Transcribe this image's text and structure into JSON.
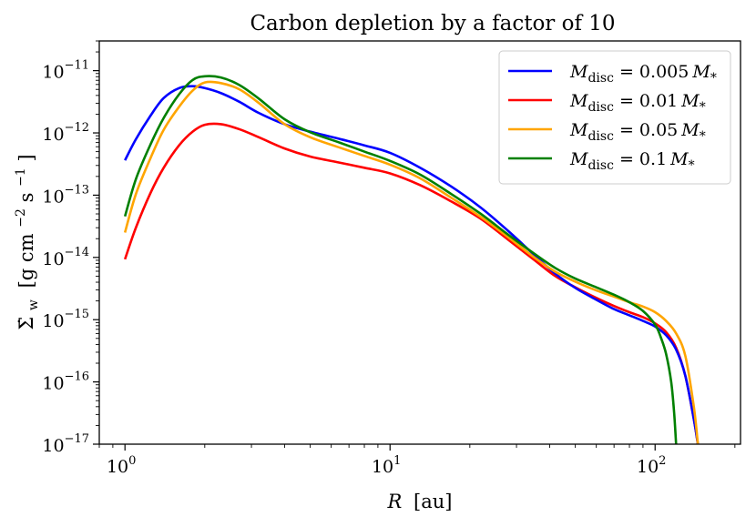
{
  "chart_data": {
    "type": "line",
    "title": "Carbon depletion by a factor of 10",
    "xlabel": {
      "var": "R",
      "unit": "[au]"
    },
    "ylabel": {
      "sym": "Σ̇",
      "sub": "w",
      "pre": "[g cm",
      "mid": " s",
      "post": "]"
    },
    "x_scale": "log",
    "y_scale": "log",
    "xlim": [
      0.8,
      210
    ],
    "ylim": [
      1e-17,
      3e-11
    ],
    "x_ticks": [
      {
        "base": "10",
        "exp": "0",
        "value": 1
      },
      {
        "base": "10",
        "exp": "1",
        "value": 10
      },
      {
        "base": "10",
        "exp": "2",
        "value": 100
      }
    ],
    "y_ticks": [
      {
        "base": "10",
        "exp": "−17",
        "value": 1e-17
      },
      {
        "base": "10",
        "exp": "−16",
        "value": 1e-16
      },
      {
        "base": "10",
        "exp": "−15",
        "value": 1e-15
      },
      {
        "base": "10",
        "exp": "−14",
        "value": 1e-14
      },
      {
        "base": "10",
        "exp": "−13",
        "value": 1e-13
      },
      {
        "base": "10",
        "exp": "−12",
        "value": 1e-12
      },
      {
        "base": "10",
        "exp": "−11",
        "value": 1e-11
      }
    ],
    "legend_position": "top-right",
    "series": [
      {
        "name": "M_disc = 0.005 M_*",
        "label": {
          "sym": "M",
          "sub": "disc",
          "rhs": " = 0.005",
          "sym2": "M",
          "sub2": "*"
        },
        "color": "#0000ff",
        "x": [
          1.0,
          1.1,
          1.25,
          1.4,
          1.6,
          1.8,
          2.0,
          2.3,
          2.7,
          3.2,
          4.0,
          5.0,
          6.5,
          8.0,
          10,
          13,
          17,
          22,
          28,
          35,
          42,
          50,
          60,
          70,
          80,
          90,
          100,
          110,
          120,
          130,
          140,
          145
        ],
        "y": [
          -12.44,
          -12.1,
          -11.72,
          -11.44,
          -11.28,
          -11.25,
          -11.28,
          -11.36,
          -11.5,
          -11.68,
          -11.86,
          -11.98,
          -12.1,
          -12.2,
          -12.32,
          -12.56,
          -12.86,
          -13.2,
          -13.58,
          -13.96,
          -14.26,
          -14.49,
          -14.68,
          -14.83,
          -14.93,
          -15.02,
          -15.11,
          -15.25,
          -15.48,
          -15.9,
          -16.6,
          -17.0
        ]
      },
      {
        "name": "M_disc = 0.01 M_*",
        "label": {
          "sym": "M",
          "sub": "disc",
          "rhs": " = 0.01",
          "sym2": "M",
          "sub2": "*"
        },
        "color": "#ff0000",
        "x": [
          1.0,
          1.1,
          1.25,
          1.4,
          1.6,
          1.8,
          2.0,
          2.3,
          2.7,
          3.2,
          4.0,
          5.0,
          6.5,
          8.0,
          10,
          13,
          17,
          22,
          28,
          35,
          42,
          50,
          60,
          70,
          80,
          90,
          100,
          110,
          120,
          130,
          140,
          145
        ],
        "y": [
          -14.03,
          -13.52,
          -12.96,
          -12.56,
          -12.2,
          -11.98,
          -11.87,
          -11.86,
          -11.94,
          -12.07,
          -12.25,
          -12.38,
          -12.48,
          -12.56,
          -12.65,
          -12.84,
          -13.1,
          -13.38,
          -13.72,
          -14.04,
          -14.3,
          -14.48,
          -14.65,
          -14.78,
          -14.88,
          -14.96,
          -15.06,
          -15.2,
          -15.45,
          -15.9,
          -16.6,
          -17.0
        ]
      },
      {
        "name": "M_disc = 0.05 M_*",
        "label": {
          "sym": "M",
          "sub": "disc",
          "rhs": " = 0.05",
          "sym2": "M",
          "sub2": "*"
        },
        "color": "#ffa500",
        "x": [
          1.0,
          1.1,
          1.25,
          1.4,
          1.6,
          1.8,
          2.0,
          2.3,
          2.7,
          3.2,
          4.0,
          5.0,
          6.5,
          8.0,
          10,
          13,
          17,
          22,
          28,
          35,
          42,
          50,
          60,
          70,
          80,
          90,
          100,
          110,
          120,
          130,
          140,
          145
        ],
        "y": [
          -13.6,
          -12.98,
          -12.4,
          -11.95,
          -11.58,
          -11.32,
          -11.19,
          -11.2,
          -11.3,
          -11.52,
          -11.86,
          -12.07,
          -12.24,
          -12.37,
          -12.51,
          -12.73,
          -13.04,
          -13.35,
          -13.68,
          -14.0,
          -14.23,
          -14.39,
          -14.53,
          -14.63,
          -14.72,
          -14.79,
          -14.88,
          -15.02,
          -15.22,
          -15.58,
          -16.4,
          -17.0
        ]
      },
      {
        "name": "M_disc = 0.1 M_*",
        "label": {
          "sym": "M",
          "sub": "disc",
          "rhs": " = 0.1",
          "sym2": "M",
          "sub2": "*"
        },
        "color": "#008000",
        "x": [
          1.0,
          1.1,
          1.25,
          1.4,
          1.6,
          1.8,
          2.0,
          2.3,
          2.7,
          3.2,
          4.0,
          5.0,
          6.5,
          8.0,
          10,
          13,
          17,
          22,
          28,
          35,
          42,
          50,
          60,
          70,
          80,
          90,
          100,
          105,
          110,
          115,
          118,
          120
        ],
        "y": [
          -13.34,
          -12.74,
          -12.18,
          -11.76,
          -11.38,
          -11.15,
          -11.09,
          -11.11,
          -11.23,
          -11.45,
          -11.78,
          -11.99,
          -12.16,
          -12.3,
          -12.45,
          -12.67,
          -12.98,
          -13.3,
          -13.64,
          -13.94,
          -14.17,
          -14.34,
          -14.48,
          -14.6,
          -14.72,
          -14.86,
          -15.08,
          -15.28,
          -15.55,
          -16.0,
          -16.5,
          -17.0
        ]
      }
    ]
  }
}
